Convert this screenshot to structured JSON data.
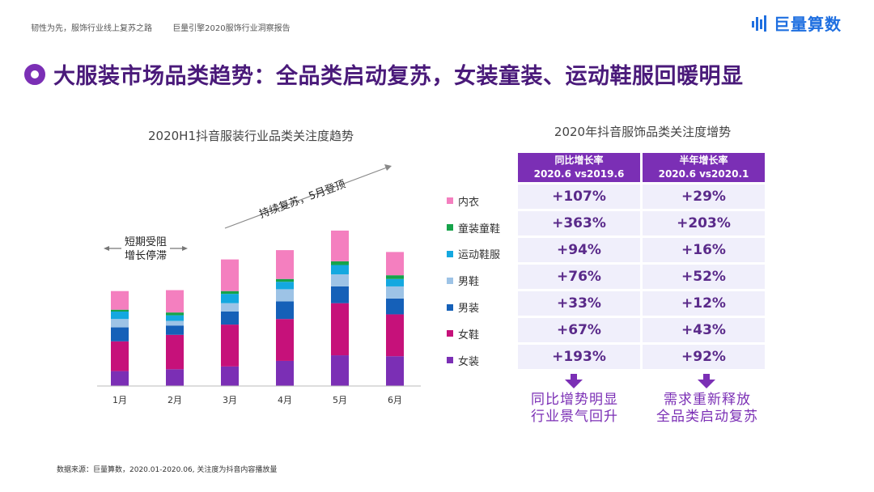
{
  "header": {
    "left_text": "韧性为先，服饰行业线上复苏之路",
    "right_text": "巨量引擎2020服饰行业洞察报告",
    "brand": "巨量算数"
  },
  "page_title": "大服装市场品类趋势：全品类启动复苏，女装童装、运动鞋服回暖明显",
  "left_chart_title": "2020H1抖音服装行业品类关注度趋势",
  "right_table_title": "2020年抖音服饰品类关注度增势",
  "annotations": {
    "early_line1": "短期受阻",
    "early_line2": "增长停滞",
    "trend": "持续复苏，5月登顶"
  },
  "chart_data": {
    "type": "bar",
    "stacked": true,
    "categories": [
      "1月",
      "2月",
      "3月",
      "4月",
      "5月",
      "6月"
    ],
    "series": [
      {
        "name": "女装",
        "color": "#7b2fb5",
        "values": [
          16,
          18,
          21,
          27,
          33,
          32
        ]
      },
      {
        "name": "女鞋",
        "color": "#c6117a",
        "values": [
          32,
          37,
          45,
          45,
          56,
          45
        ]
      },
      {
        "name": "男装",
        "color": "#1560b8",
        "values": [
          15,
          10,
          14,
          19,
          18,
          17
        ]
      },
      {
        "name": "男鞋",
        "color": "#9dc3e6",
        "values": [
          9,
          5,
          9,
          13,
          13,
          13
        ]
      },
      {
        "name": "运动鞋服",
        "color": "#14a8e0",
        "values": [
          8,
          6,
          10,
          8,
          10,
          8
        ]
      },
      {
        "name": "童装童鞋",
        "color": "#16a34a",
        "values": [
          2,
          3,
          3,
          3,
          4,
          4
        ]
      },
      {
        "name": "内衣",
        "color": "#f47fbf",
        "values": [
          20,
          24,
          34,
          31,
          33,
          25
        ]
      }
    ],
    "legend_order": [
      "内衣",
      "童装童鞋",
      "运动鞋服",
      "男鞋",
      "男装",
      "女鞋",
      "女装"
    ],
    "legend_position": "right",
    "grid": false
  },
  "growth_table": {
    "columns": [
      {
        "line1": "同比增长率",
        "line2": "2020.6 vs2019.6"
      },
      {
        "line1": "半年增长率",
        "line2": "2020.6 vs2020.1"
      }
    ],
    "rows": [
      {
        "category": "内衣",
        "yoy": "+107%",
        "half": "+29%"
      },
      {
        "category": "童装童鞋",
        "yoy": "+363%",
        "half": "+203%"
      },
      {
        "category": "运动鞋服",
        "yoy": "+94%",
        "half": "+16%"
      },
      {
        "category": "男鞋",
        "yoy": "+76%",
        "half": "+52%"
      },
      {
        "category": "男装",
        "yoy": "+33%",
        "half": "+12%"
      },
      {
        "category": "女鞋",
        "yoy": "+67%",
        "half": "+43%"
      },
      {
        "category": "女装",
        "yoy": "+193%",
        "half": "+92%"
      }
    ]
  },
  "conclusions": {
    "left_line1": "同比增势明显",
    "left_line2": "行业景气回升",
    "right_line1": "需求重新释放",
    "right_line2": "全品类启动复苏"
  },
  "source": "数据来源：巨量算数，2020.01-2020.06, 关注度为抖音内容播放量"
}
